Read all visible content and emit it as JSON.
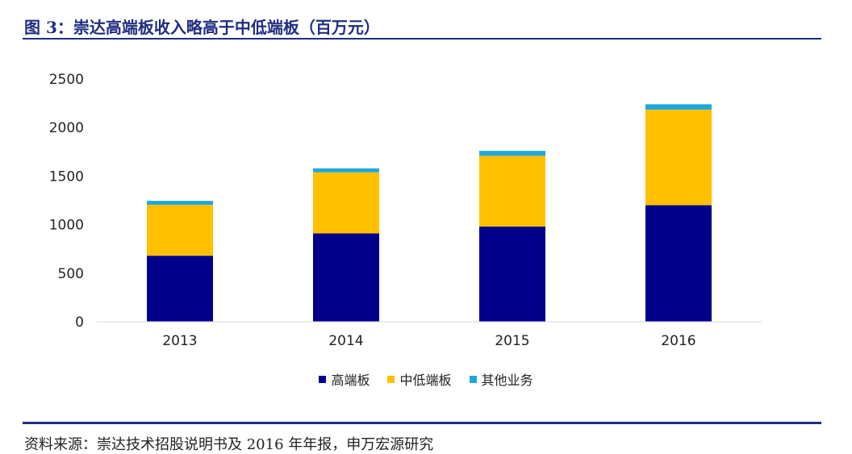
{
  "header": {
    "title": "图 3：崇达高端板收入略高于中低端板（百万元）"
  },
  "footer": {
    "source": "资料来源：崇达技术招股说明书及 2016 年年报，申万宏源研究"
  },
  "chart_data": {
    "type": "bar",
    "stacked": true,
    "categories": [
      "2013",
      "2014",
      "2015",
      "2016"
    ],
    "series": [
      {
        "name": "高端板",
        "color": "#00008b",
        "values": [
          680,
          910,
          980,
          1200
        ]
      },
      {
        "name": "中低端板",
        "color": "#ffc000",
        "values": [
          525,
          630,
          730,
          985
        ]
      },
      {
        "name": "其他业务",
        "color": "#1ea7e1",
        "values": [
          40,
          40,
          50,
          55
        ]
      }
    ],
    "ylim": [
      0,
      2500
    ],
    "yticks": [
      0,
      500,
      1000,
      1500,
      2000,
      2500
    ],
    "grid": false,
    "legend_position": "bottom"
  }
}
